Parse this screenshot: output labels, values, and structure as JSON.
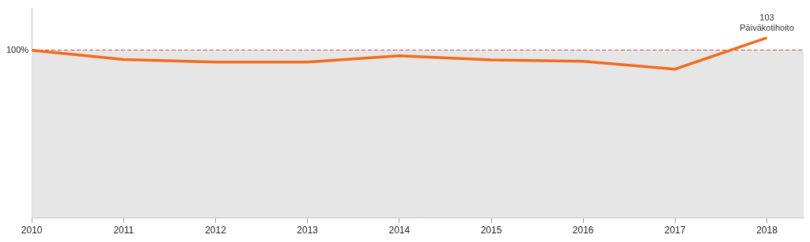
{
  "chart_data": {
    "type": "line",
    "x": [
      2010,
      2011,
      2012,
      2013,
      2014,
      2015,
      2016,
      2017,
      2018
    ],
    "values": [
      100,
      97.8,
      97.2,
      97.2,
      98.7,
      97.7,
      97.4,
      95.5,
      103
    ],
    "color": "#f26b1d",
    "xlim": [
      2010,
      2018.4
    ],
    "xticks": [
      2010,
      2011,
      2012,
      2013,
      2014,
      2015,
      2016,
      2017,
      2018
    ],
    "ylim": [
      60,
      110
    ],
    "yticks": [
      {
        "value": 100,
        "label": "100%"
      }
    ],
    "grid": "y",
    "annotations": [
      {
        "x": 2018,
        "y": 103,
        "lines": [
          "103",
          "Päiväkotihoito"
        ]
      }
    ]
  }
}
